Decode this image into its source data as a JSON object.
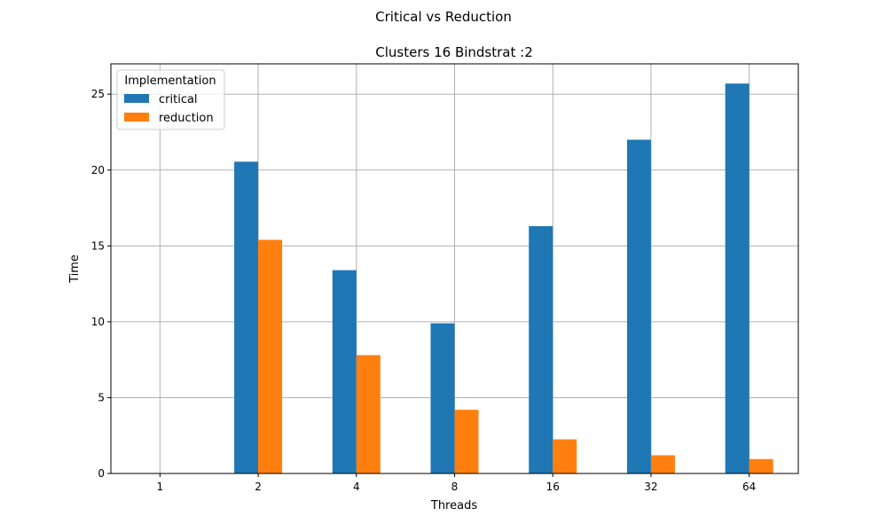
{
  "chart_data": {
    "type": "bar",
    "suptitle": "Critical vs Reduction",
    "title": "Clusters 16 Bindstrat :2",
    "xlabel": "Threads",
    "ylabel": "Time",
    "categories": [
      "1",
      "2",
      "4",
      "8",
      "16",
      "32",
      "64"
    ],
    "series": [
      {
        "name": "critical",
        "color": "#1f77b4",
        "values": [
          0,
          20.55,
          13.4,
          9.9,
          16.3,
          22.0,
          25.7
        ]
      },
      {
        "name": "reduction",
        "color": "#ff7f0e",
        "values": [
          0,
          15.4,
          7.8,
          4.2,
          2.25,
          1.2,
          0.95
        ]
      }
    ],
    "ylim": [
      0,
      27
    ],
    "yticks": [
      0,
      5,
      10,
      15,
      20,
      25
    ],
    "grid": true,
    "legend": {
      "title": "Implementation",
      "placement": "top-left"
    }
  }
}
